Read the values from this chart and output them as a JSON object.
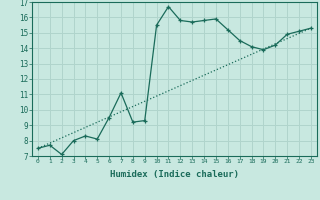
{
  "xlabel": "Humidex (Indice chaleur)",
  "ylabel": "",
  "bg_color": "#c8e8e0",
  "grid_color": "#b0d4cc",
  "line_color": "#1a6b5a",
  "xlim": [
    -0.5,
    23.5
  ],
  "ylim": [
    7,
    17
  ],
  "yticks": [
    7,
    8,
    9,
    10,
    11,
    12,
    13,
    14,
    15,
    16,
    17
  ],
  "xticks": [
    0,
    1,
    2,
    3,
    4,
    5,
    6,
    7,
    8,
    9,
    10,
    11,
    12,
    13,
    14,
    15,
    16,
    17,
    18,
    19,
    20,
    21,
    22,
    23
  ],
  "curve1_x": [
    0,
    1,
    2,
    3,
    4,
    5,
    6,
    7,
    8,
    9,
    10,
    11,
    12,
    13,
    14,
    15,
    16,
    17,
    18,
    19,
    20,
    21,
    22,
    23
  ],
  "curve1_y": [
    7.5,
    7.7,
    7.1,
    8.0,
    8.3,
    8.1,
    9.5,
    11.1,
    9.2,
    9.3,
    15.5,
    16.7,
    15.8,
    15.7,
    15.8,
    15.9,
    15.2,
    14.5,
    14.1,
    13.9,
    14.2,
    14.9,
    15.1,
    15.3
  ],
  "curve2_x": [
    0,
    23
  ],
  "curve2_y": [
    7.5,
    15.3
  ]
}
